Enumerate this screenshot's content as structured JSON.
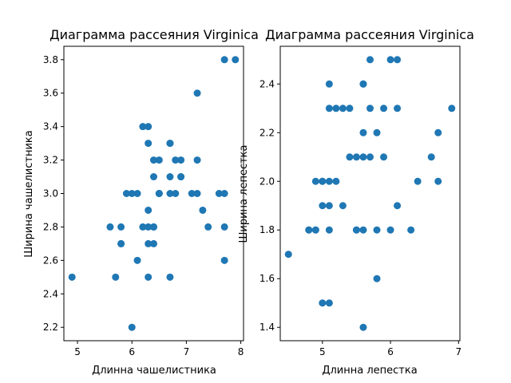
{
  "chart_data": [
    {
      "type": "scatter",
      "title": "Диаграмма рассеяния Virginica",
      "xlabel": "Длинна чашелистника",
      "ylabel": "Ширина чашелистника",
      "xlim": [
        4.75,
        8.05
      ],
      "ylim": [
        2.12,
        3.88
      ],
      "xticks": [
        5,
        6,
        7,
        8
      ],
      "yticks": [
        2.2,
        2.4,
        2.6,
        2.8,
        3.0,
        3.2,
        3.4,
        3.6,
        3.8
      ],
      "color": "#1f77b4",
      "grid": false,
      "points": [
        [
          6.3,
          3.3
        ],
        [
          5.8,
          2.7
        ],
        [
          7.1,
          3.0
        ],
        [
          6.3,
          2.9
        ],
        [
          6.5,
          3.0
        ],
        [
          7.6,
          3.0
        ],
        [
          4.9,
          2.5
        ],
        [
          7.3,
          2.9
        ],
        [
          6.7,
          2.5
        ],
        [
          7.2,
          3.6
        ],
        [
          6.5,
          3.2
        ],
        [
          6.4,
          2.7
        ],
        [
          6.8,
          3.0
        ],
        [
          5.7,
          2.5
        ],
        [
          5.8,
          2.8
        ],
        [
          6.4,
          3.2
        ],
        [
          6.5,
          3.0
        ],
        [
          7.7,
          3.8
        ],
        [
          7.7,
          2.6
        ],
        [
          6.0,
          2.2
        ],
        [
          6.9,
          3.2
        ],
        [
          5.6,
          2.8
        ],
        [
          7.7,
          2.8
        ],
        [
          6.3,
          2.7
        ],
        [
          6.7,
          3.3
        ],
        [
          7.2,
          3.2
        ],
        [
          6.2,
          2.8
        ],
        [
          6.1,
          3.0
        ],
        [
          6.4,
          2.8
        ],
        [
          7.2,
          3.0
        ],
        [
          7.4,
          2.8
        ],
        [
          7.9,
          3.8
        ],
        [
          6.4,
          2.8
        ],
        [
          6.3,
          2.8
        ],
        [
          6.1,
          2.6
        ],
        [
          7.7,
          3.0
        ],
        [
          6.3,
          3.4
        ],
        [
          6.4,
          3.1
        ],
        [
          6.0,
          3.0
        ],
        [
          6.9,
          3.1
        ],
        [
          6.7,
          3.1
        ],
        [
          6.9,
          3.1
        ],
        [
          5.8,
          2.7
        ],
        [
          6.8,
          3.2
        ],
        [
          6.7,
          3.3
        ],
        [
          6.7,
          3.0
        ],
        [
          6.3,
          2.5
        ],
        [
          6.5,
          3.0
        ],
        [
          6.2,
          3.4
        ],
        [
          5.9,
          3.0
        ]
      ]
    },
    {
      "type": "scatter",
      "title": "Диаграмма рассеяния Virginica",
      "xlabel": "Длинна лепестка",
      "ylabel": "Ширина лепестка",
      "xlim": [
        4.38,
        7.02
      ],
      "ylim": [
        1.345,
        2.555
      ],
      "xticks": [
        5,
        6,
        7
      ],
      "yticks": [
        1.4,
        1.6,
        1.8,
        2.0,
        2.2,
        2.4
      ],
      "color": "#1f77b4",
      "grid": false,
      "points": [
        [
          6.0,
          2.5
        ],
        [
          5.1,
          1.9
        ],
        [
          5.9,
          2.1
        ],
        [
          5.6,
          1.8
        ],
        [
          5.8,
          2.2
        ],
        [
          6.6,
          2.1
        ],
        [
          4.5,
          1.7
        ],
        [
          6.3,
          1.8
        ],
        [
          5.8,
          1.8
        ],
        [
          6.1,
          2.5
        ],
        [
          5.1,
          2.0
        ],
        [
          5.3,
          1.9
        ],
        [
          5.5,
          2.1
        ],
        [
          5.0,
          2.0
        ],
        [
          5.1,
          2.4
        ],
        [
          5.3,
          2.3
        ],
        [
          5.5,
          1.8
        ],
        [
          6.7,
          2.2
        ],
        [
          6.9,
          2.3
        ],
        [
          5.0,
          1.5
        ],
        [
          5.7,
          2.3
        ],
        [
          4.9,
          2.0
        ],
        [
          6.7,
          2.0
        ],
        [
          4.9,
          1.8
        ],
        [
          5.7,
          2.1
        ],
        [
          6.0,
          1.8
        ],
        [
          4.8,
          1.8
        ],
        [
          4.9,
          1.8
        ],
        [
          5.6,
          2.1
        ],
        [
          5.8,
          1.6
        ],
        [
          6.1,
          1.9
        ],
        [
          6.4,
          2.0
        ],
        [
          5.6,
          2.2
        ],
        [
          5.1,
          1.5
        ],
        [
          5.6,
          1.4
        ],
        [
          6.1,
          2.3
        ],
        [
          5.6,
          2.4
        ],
        [
          5.5,
          1.8
        ],
        [
          4.8,
          1.8
        ],
        [
          5.4,
          2.1
        ],
        [
          5.6,
          2.4
        ],
        [
          5.1,
          2.3
        ],
        [
          5.9,
          2.3
        ],
        [
          5.7,
          2.5
        ],
        [
          5.2,
          2.3
        ],
        [
          5.0,
          1.9
        ],
        [
          5.2,
          2.0
        ],
        [
          5.4,
          2.3
        ],
        [
          5.1,
          1.8
        ],
        [
          5.0,
          2.0
        ]
      ]
    }
  ]
}
